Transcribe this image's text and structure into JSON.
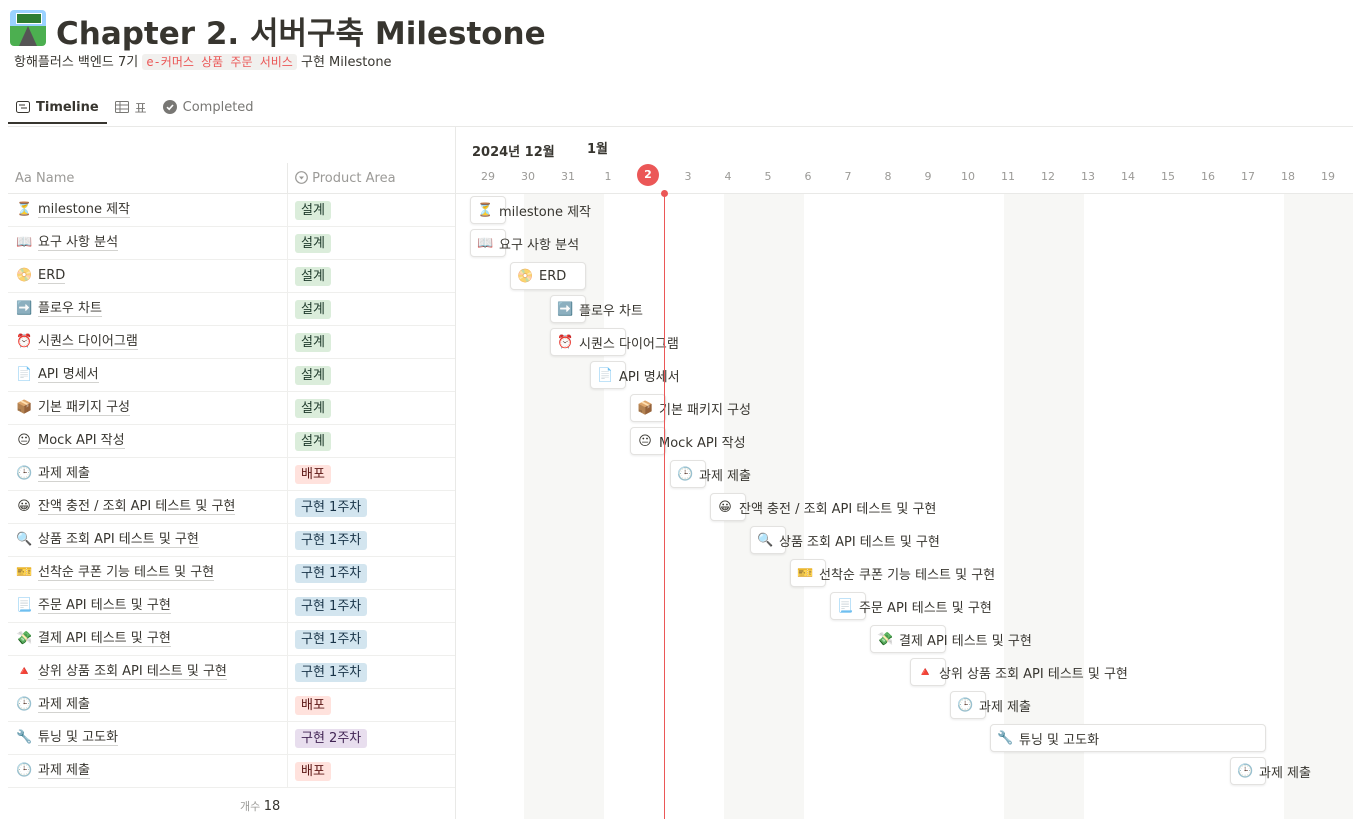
{
  "page": {
    "title": "Chapter 2. 서버구축 Milestone",
    "subtitle_prefix": "항해플러스 백엔드 7기",
    "subtitle_code": "e-커머스 상품 주문 서비스",
    "subtitle_suffix": "구현 Milestone",
    "icon": "motorway-icon"
  },
  "tabs": [
    {
      "label": "Timeline",
      "icon": "timeline-icon",
      "active": true
    },
    {
      "label": "표",
      "icon": "table-icon",
      "active": false
    },
    {
      "label": "Completed",
      "icon": "check-circle-icon",
      "active": false
    }
  ],
  "table": {
    "name_header_prefix": "Aa",
    "name_header": "Name",
    "area_header": "Product Area",
    "count_label": "개수",
    "count_value": "18"
  },
  "timeline": {
    "month_dec": "2024년 12월",
    "month_jan": "1월",
    "days": [
      "29",
      "30",
      "31",
      "1",
      "2",
      "3",
      "4",
      "5",
      "6",
      "7",
      "8",
      "9",
      "10",
      "11",
      "12",
      "13",
      "14",
      "15",
      "16",
      "17",
      "18",
      "19"
    ],
    "today": "2"
  },
  "colors": {
    "green_tag": "#dbeddb",
    "red_tag": "#ffe2dd",
    "blue_tag": "#d3e5ef",
    "purple_tag": "#e8deee",
    "today": "#eb5757"
  },
  "rows": [
    {
      "emoji": "⏳",
      "icon": "hourglass-icon",
      "name": "milestone 제작",
      "area": "설계",
      "color": "green",
      "start": 0,
      "span": 1
    },
    {
      "emoji": "📖",
      "icon": "book-icon",
      "name": "요구 사항 분석",
      "area": "설계",
      "color": "green",
      "start": 0,
      "span": 1
    },
    {
      "emoji": "📀",
      "icon": "dvd-icon",
      "name": "ERD",
      "area": "설계",
      "color": "green",
      "start": 1,
      "span": 2
    },
    {
      "emoji": "➡️",
      "icon": "right-arrow-icon",
      "name": "플로우 차트",
      "area": "설계",
      "color": "green",
      "start": 2,
      "span": 1
    },
    {
      "emoji": "⏰",
      "icon": "alarm-clock-icon",
      "name": "시퀀스 다이어그램",
      "area": "설계",
      "color": "green",
      "start": 2,
      "span": 2
    },
    {
      "emoji": "📄",
      "icon": "document-icon",
      "name": "API 명세서",
      "area": "설계",
      "color": "green",
      "start": 3,
      "span": 1
    },
    {
      "emoji": "📦",
      "icon": "package-icon",
      "name": "기본 패키지 구성",
      "area": "설계",
      "color": "green",
      "start": 4,
      "span": 1
    },
    {
      "emoji": "😐",
      "icon": "face-icon",
      "name": "Mock API 작성",
      "area": "설계",
      "color": "green",
      "start": 4,
      "span": 1
    },
    {
      "emoji": "🕒",
      "icon": "clock-icon",
      "name": "과제 제출",
      "area": "배포",
      "color": "red",
      "start": 5,
      "span": 1
    },
    {
      "emoji": "😀",
      "icon": "smile-icon",
      "name": "잔액 충전 / 조회 API 테스트 및 구현",
      "area": "구현 1주차",
      "color": "blue",
      "start": 6,
      "span": 1
    },
    {
      "emoji": "🔍",
      "icon": "magnifier-icon",
      "name": "상품 조회 API 테스트 및 구현",
      "area": "구현 1주차",
      "color": "blue",
      "start": 7,
      "span": 1
    },
    {
      "emoji": "🎫",
      "icon": "ticket-icon",
      "name": "선착순 쿠폰 기능 테스트 및 구현",
      "area": "구현 1주차",
      "color": "blue",
      "start": 8,
      "span": 1
    },
    {
      "emoji": "📃",
      "icon": "page-icon",
      "name": "주문 API 테스트 및 구현",
      "area": "구현 1주차",
      "color": "blue",
      "start": 9,
      "span": 1
    },
    {
      "emoji": "💸",
      "icon": "money-icon",
      "name": "결제 API 테스트 및 구현",
      "area": "구현 1주차",
      "color": "blue",
      "start": 10,
      "span": 2
    },
    {
      "emoji": "🔺",
      "icon": "triangle-icon",
      "name": "상위 상품 조회 API 테스트 및 구현",
      "area": "구현 1주차",
      "color": "blue",
      "start": 11,
      "span": 1
    },
    {
      "emoji": "🕒",
      "icon": "clock-icon",
      "name": "과제 제출",
      "area": "배포",
      "color": "red",
      "start": 12,
      "span": 1
    },
    {
      "emoji": "🔧",
      "icon": "wrench-icon",
      "name": "튜닝 및 고도화",
      "area": "구현 2주차",
      "color": "purple",
      "start": 13,
      "span": 7
    },
    {
      "emoji": "🕒",
      "icon": "clock-icon",
      "name": "과제 제출",
      "area": "배포",
      "color": "red",
      "start": 19,
      "span": 1
    }
  ]
}
